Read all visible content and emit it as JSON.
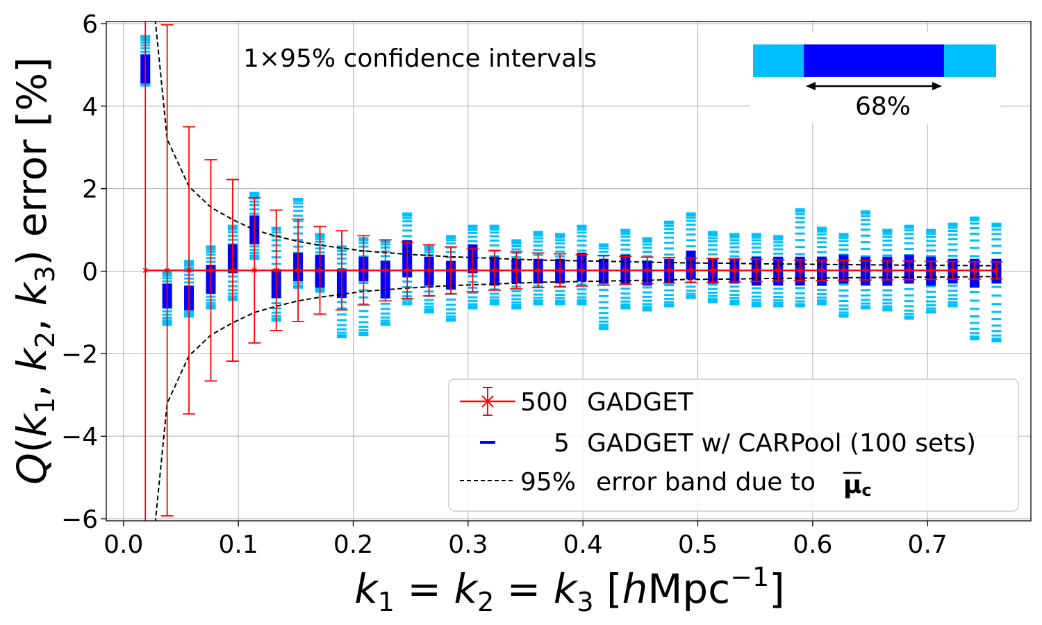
{
  "chart_data": {
    "type": "scatter",
    "title": "",
    "xlabel_parts": {
      "k1": "k",
      "s1": "1",
      "eq1": " = ",
      "k2": "k",
      "s2": "2",
      "eq2": " = ",
      "k3": "k",
      "s3": "3",
      "open": " [",
      "h": "h",
      "mpc": "Mpc",
      "exp": "−1",
      "close": "]"
    },
    "ylabel_parts": {
      "q": "Q",
      "open": "(",
      "k1": "k",
      "s1": "1",
      "c1": ", ",
      "k2": "k",
      "s2": "2",
      "c2": ", ",
      "k3": "k",
      "s3": "3",
      "close": ")",
      "rest": " error [%]"
    },
    "xlim": [
      -0.015,
      0.79
    ],
    "ylim": [
      -6.05,
      6.05
    ],
    "grid": true,
    "xticks": [
      0.0,
      0.1,
      0.2,
      0.3,
      0.4,
      0.5,
      0.6,
      0.7
    ],
    "xtick_labels": [
      "0.0",
      "0.1",
      "0.2",
      "0.3",
      "0.4",
      "0.5",
      "0.6",
      "0.7"
    ],
    "yticks": [
      -6,
      -4,
      -2,
      0,
      2,
      4,
      6
    ],
    "ytick_labels": [
      "−6",
      "−4",
      "−2",
      "0",
      "2",
      "4",
      "6"
    ],
    "annotation": "1×95% confidence intervals",
    "inset": {
      "label": "68%",
      "colors": {
        "outer": "#00bfff",
        "inner": "#0000ff"
      }
    },
    "legend": {
      "location": "lower-right",
      "entries": [
        {
          "count": "500",
          "label": "GADGET"
        },
        {
          "count": "5",
          "label": "GADGET w/ CARPool (100 sets)"
        },
        {
          "count": "95%",
          "label": "error band due to ",
          "symbol": "μ",
          "symbol_sub": "c"
        }
      ]
    },
    "colors": {
      "gadget": "#ff0000",
      "carpool_dark": "#0000ff",
      "carpool_light": "#00bfff",
      "band": "#000000"
    },
    "series": [
      {
        "name": "500 GADGET",
        "x": [
          0.019,
          0.038,
          0.057,
          0.076,
          0.095,
          0.114,
          0.133,
          0.152,
          0.171,
          0.19,
          0.209,
          0.228,
          0.247,
          0.266,
          0.285,
          0.304,
          0.323,
          0.342,
          0.361,
          0.38,
          0.399,
          0.418,
          0.437,
          0.456,
          0.475,
          0.494,
          0.513,
          0.532,
          0.551,
          0.57,
          0.589,
          0.608,
          0.627,
          0.646,
          0.665,
          0.684,
          0.703,
          0.722,
          0.741,
          0.76
        ],
        "y": [
          0.02,
          0.02,
          0.02,
          0.02,
          0.02,
          0.02,
          0.02,
          0.02,
          0.02,
          0.02,
          0.02,
          0.02,
          0.02,
          0.02,
          0.02,
          0.02,
          0.02,
          0.02,
          0.02,
          0.02,
          0.02,
          0.02,
          0.02,
          0.02,
          0.02,
          0.02,
          0.02,
          0.02,
          0.02,
          0.02,
          0.02,
          0.02,
          0.02,
          0.02,
          0.02,
          0.02,
          0.02,
          0.02,
          0.02,
          0.02
        ],
        "yerr": [
          6.6,
          5.95,
          3.48,
          2.68,
          2.2,
          1.76,
          1.46,
          1.24,
          1.06,
          0.96,
          0.84,
          0.74,
          0.68,
          0.62,
          0.57,
          0.52,
          0.48,
          0.45,
          0.42,
          0.4,
          0.38,
          0.36,
          0.34,
          0.32,
          0.31,
          0.3,
          0.29,
          0.28,
          0.27,
          0.26,
          0.25,
          0.245,
          0.24,
          0.235,
          0.23,
          0.225,
          0.22,
          0.215,
          0.21,
          0.205
        ]
      },
      {
        "name": "5 GADGET w/ CARPool (100 sets)",
        "x": [
          0.019,
          0.038,
          0.057,
          0.076,
          0.095,
          0.114,
          0.133,
          0.152,
          0.171,
          0.19,
          0.209,
          0.228,
          0.247,
          0.266,
          0.285,
          0.304,
          0.323,
          0.342,
          0.361,
          0.38,
          0.399,
          0.418,
          0.437,
          0.456,
          0.475,
          0.494,
          0.513,
          0.532,
          0.551,
          0.57,
          0.589,
          0.608,
          0.627,
          0.646,
          0.665,
          0.684,
          0.703,
          0.722,
          0.741,
          0.76
        ],
        "center": [
          4.9,
          -0.6,
          -0.65,
          -0.2,
          0.3,
          1.0,
          -0.3,
          0.1,
          0.0,
          -0.3,
          0.05,
          -0.2,
          0.3,
          0.0,
          -0.1,
          0.3,
          0.0,
          0.0,
          0.0,
          0.0,
          0.1,
          0.0,
          0.05,
          -0.05,
          0.0,
          0.15,
          0.0,
          0.0,
          0.0,
          0.0,
          0.0,
          0.0,
          0.05,
          0.0,
          0.0,
          0.05,
          0.0,
          0.0,
          -0.05,
          0.0
        ],
        "inner_half": [
          0.35,
          0.3,
          0.3,
          0.35,
          0.35,
          0.35,
          0.35,
          0.35,
          0.4,
          0.35,
          0.3,
          0.45,
          0.45,
          0.35,
          0.35,
          0.35,
          0.35,
          0.3,
          0.3,
          0.3,
          0.35,
          0.3,
          0.35,
          0.3,
          0.3,
          0.35,
          0.3,
          0.3,
          0.35,
          0.35,
          0.35,
          0.35,
          0.35,
          0.35,
          0.35,
          0.35,
          0.35,
          0.3,
          0.35,
          0.3
        ],
        "outer_low": [
          4.5,
          -1.3,
          -1.1,
          -0.9,
          -0.7,
          0.3,
          -1.2,
          -0.4,
          -0.5,
          -1.6,
          -1.55,
          -1.3,
          -0.8,
          -1.0,
          -1.2,
          -0.9,
          -0.8,
          -0.9,
          -0.8,
          -0.8,
          -0.8,
          -1.4,
          -0.9,
          -0.95,
          -0.85,
          -0.65,
          -0.75,
          -0.8,
          -0.85,
          -0.85,
          -0.85,
          -0.8,
          -1.1,
          -0.9,
          -0.95,
          -1.15,
          -1.0,
          -0.85,
          -1.65,
          -1.7
        ],
        "outer_high": [
          5.7,
          0.0,
          0.25,
          0.6,
          1.1,
          1.9,
          1.05,
          1.75,
          0.9,
          0.6,
          0.8,
          0.75,
          1.4,
          0.6,
          0.85,
          1.1,
          1.1,
          0.75,
          0.95,
          0.9,
          1.1,
          0.65,
          1.0,
          0.8,
          1.2,
          1.4,
          0.95,
          0.9,
          0.9,
          0.85,
          1.5,
          1.05,
          0.9,
          1.45,
          1.0,
          1.1,
          1.0,
          1.15,
          1.3,
          1.15
        ]
      },
      {
        "name": "95% error band",
        "x": [
          0.019,
          0.038,
          0.057,
          0.076,
          0.095,
          0.114,
          0.133,
          0.152,
          0.171,
          0.19,
          0.209,
          0.228,
          0.247,
          0.266,
          0.285,
          0.304,
          0.323,
          0.342,
          0.361,
          0.38,
          0.399,
          0.418,
          0.437,
          0.456,
          0.475,
          0.494,
          0.513,
          0.532,
          0.551,
          0.57,
          0.589,
          0.608,
          0.627,
          0.646,
          0.665,
          0.684,
          0.703,
          0.722,
          0.741,
          0.76
        ],
        "upper": [
          8.5,
          3.2,
          2.05,
          1.55,
          1.25,
          1.0,
          0.85,
          0.72,
          0.63,
          0.56,
          0.49,
          0.45,
          0.41,
          0.38,
          0.35,
          0.33,
          0.31,
          0.29,
          0.27,
          0.26,
          0.25,
          0.24,
          0.23,
          0.22,
          0.21,
          0.2,
          0.195,
          0.19,
          0.18,
          0.175,
          0.17,
          0.165,
          0.16,
          0.155,
          0.15,
          0.145,
          0.14,
          0.14,
          0.135,
          0.13
        ]
      }
    ]
  }
}
